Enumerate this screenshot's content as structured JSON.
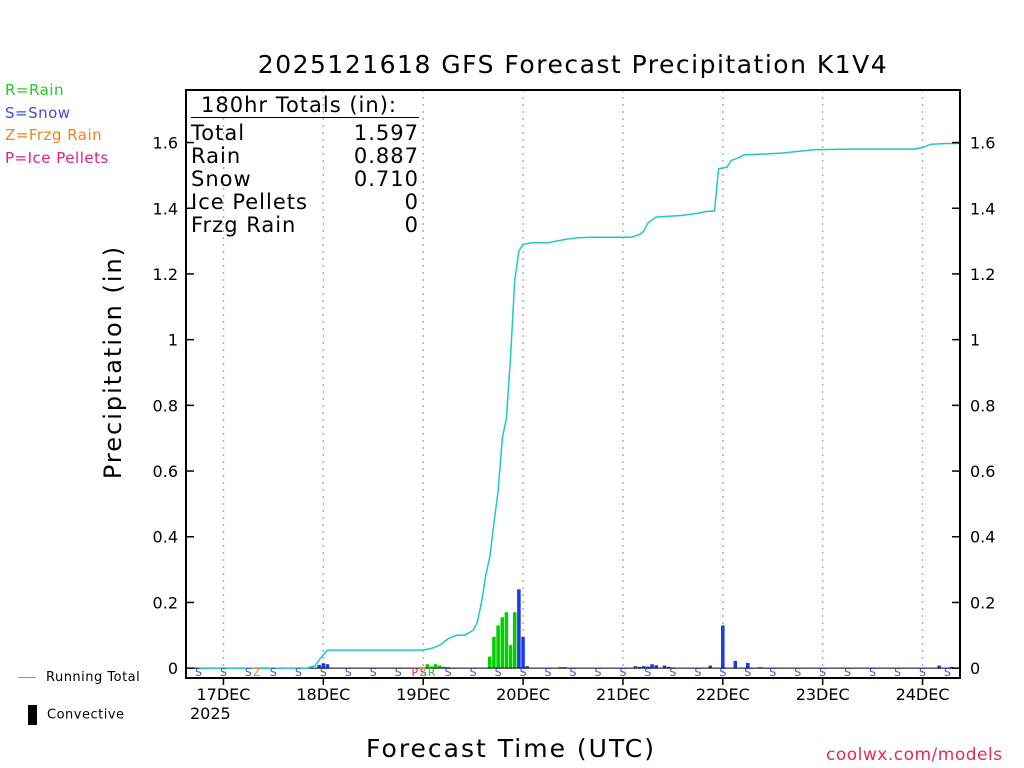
{
  "chart_data": {
    "type": "bar",
    "title": "2025121618 GFS Forecast Precipitation K1V4",
    "xlabel": "Forecast Time (UTC)",
    "ylabel": "Precipitation (in)",
    "ylim": [
      -0.03,
      1.76
    ],
    "yticks": [
      0,
      0.2,
      0.4,
      0.6,
      0.8,
      1,
      1.2,
      1.4,
      1.6
    ],
    "ytick_labels": [
      "0",
      "0.2",
      "0.4",
      "0.6",
      "0.8",
      "1",
      "1.2",
      "1.4",
      "1.6"
    ],
    "xlim_hours": [
      -3,
      183
    ],
    "x_day_ticks": [
      {
        "hour": 6,
        "label": "17DEC"
      },
      {
        "hour": 30,
        "label": "18DEC"
      },
      {
        "hour": 54,
        "label": "19DEC"
      },
      {
        "hour": 78,
        "label": "20DEC"
      },
      {
        "hour": 102,
        "label": "21DEC"
      },
      {
        "hour": 126,
        "label": "22DEC"
      },
      {
        "hour": 150,
        "label": "23DEC"
      },
      {
        "hour": 174,
        "label": "24DEC"
      }
    ],
    "year_label": "2025",
    "totals": {
      "header": "180hr Totals (in):",
      "rows": [
        {
          "label": "Total",
          "value": "1.597"
        },
        {
          "label": "Rain",
          "value": "0.887"
        },
        {
          "label": "Snow",
          "value": "0.710"
        },
        {
          "label": "Ice Pellets",
          "value": "0"
        },
        {
          "label": "Frzg Rain",
          "value": "0"
        }
      ]
    },
    "series": [
      {
        "name": "Rain",
        "color": "#00d000",
        "points": [
          [
            55,
            0.012
          ],
          [
            56,
            0.005
          ],
          [
            57,
            0.012
          ],
          [
            58,
            0.008
          ],
          [
            59,
            0.004
          ],
          [
            60,
            0.003
          ],
          [
            70,
            0.035
          ],
          [
            71,
            0.095
          ],
          [
            72,
            0.13
          ],
          [
            73,
            0.155
          ],
          [
            74,
            0.17
          ],
          [
            75,
            0.07
          ],
          [
            76,
            0.17
          ]
        ]
      },
      {
        "name": "Snow",
        "color": "#1a3ce8",
        "points": [
          [
            29,
            0.01
          ],
          [
            30,
            0.015
          ],
          [
            31,
            0.012
          ],
          [
            77,
            0.24
          ],
          [
            78,
            0.095
          ],
          [
            79,
            0.006
          ],
          [
            87,
            0.003
          ],
          [
            88,
            0.003
          ],
          [
            105,
            0.006
          ],
          [
            106,
            0.004
          ],
          [
            107,
            0.006
          ],
          [
            108,
            0.005
          ],
          [
            109,
            0.012
          ],
          [
            110,
            0.009
          ],
          [
            112,
            0.008
          ],
          [
            113,
            0.004
          ],
          [
            114,
            0.002
          ],
          [
            123,
            0.008
          ],
          [
            126,
            0.13
          ],
          [
            129,
            0.022
          ],
          [
            132,
            0.016
          ],
          [
            135,
            0.003
          ],
          [
            178,
            0.008
          ],
          [
            181,
            0.004
          ]
        ]
      },
      {
        "name": "Running Total",
        "color": "#20c8c8",
        "points": [
          [
            0,
            0
          ],
          [
            26,
            0
          ],
          [
            28,
            0.007
          ],
          [
            29,
            0.025
          ],
          [
            30,
            0.04
          ],
          [
            31,
            0.055
          ],
          [
            35,
            0.055
          ],
          [
            54,
            0.055
          ],
          [
            56,
            0.06
          ],
          [
            58,
            0.07
          ],
          [
            60,
            0.09
          ],
          [
            62,
            0.1
          ],
          [
            64,
            0.1
          ],
          [
            66,
            0.115
          ],
          [
            67,
            0.14
          ],
          [
            68,
            0.2
          ],
          [
            69,
            0.28
          ],
          [
            70,
            0.34
          ],
          [
            71,
            0.44
          ],
          [
            72,
            0.54
          ],
          [
            73,
            0.7
          ],
          [
            74,
            0.76
          ],
          [
            75,
            0.95
          ],
          [
            76,
            1.18
          ],
          [
            77,
            1.27
          ],
          [
            78,
            1.29
          ],
          [
            80,
            1.295
          ],
          [
            84,
            1.295
          ],
          [
            88,
            1.305
          ],
          [
            91,
            1.31
          ],
          [
            95,
            1.312
          ],
          [
            100,
            1.312
          ],
          [
            104,
            1.312
          ],
          [
            106,
            1.32
          ],
          [
            107,
            1.33
          ],
          [
            108,
            1.355
          ],
          [
            109,
            1.365
          ],
          [
            110,
            1.373
          ],
          [
            112,
            1.375
          ],
          [
            116,
            1.378
          ],
          [
            120,
            1.385
          ],
          [
            122,
            1.39
          ],
          [
            124,
            1.392
          ],
          [
            125,
            1.52
          ],
          [
            127,
            1.525
          ],
          [
            128,
            1.545
          ],
          [
            130,
            1.555
          ],
          [
            131,
            1.562
          ],
          [
            140,
            1.568
          ],
          [
            148,
            1.578
          ],
          [
            156,
            1.58
          ],
          [
            172,
            1.58
          ],
          [
            174,
            1.585
          ],
          [
            176,
            1.595
          ],
          [
            180,
            1.597
          ],
          [
            183,
            1.597
          ]
        ]
      }
    ],
    "ptype_row": {
      "marker_label": "S",
      "rain_marker": "R",
      "frzg_marker": "Z",
      "ice_marker": "P"
    }
  },
  "legend": {
    "rain": {
      "label": "R=Rain",
      "color": "#22cc22"
    },
    "snow": {
      "label": "S=Snow",
      "color": "#3a4ee0"
    },
    "frzg": {
      "label": "Z=Frzg Rain",
      "color": "#f08020"
    },
    "ice": {
      "label": "P=Ice Pellets",
      "color": "#e02080"
    },
    "running_total": "Running Total",
    "convective": "Convective"
  },
  "watermark": "coolwx.com/models"
}
